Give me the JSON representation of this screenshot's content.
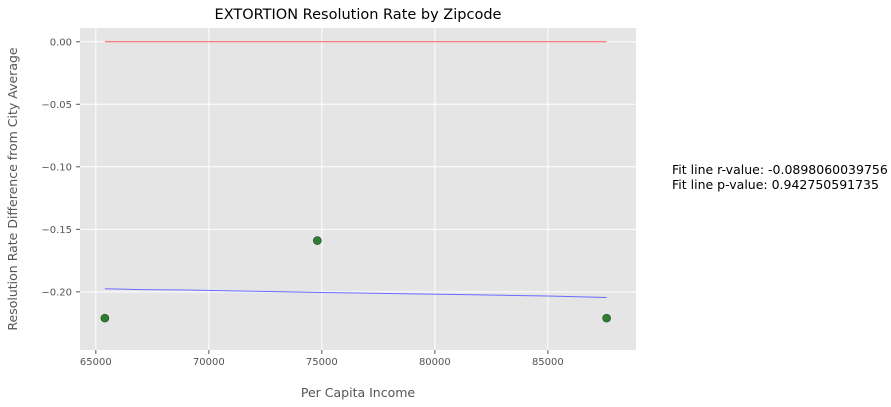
{
  "chart_data": {
    "type": "scatter",
    "title": "EXTORTION Resolution Rate by Zipcode",
    "xlabel": "Per Capita Income",
    "ylabel": "Resolution Rate Difference from City Average",
    "xlim": [
      64300,
      88900
    ],
    "ylim": [
      -0.2465,
      0.011
    ],
    "xticks": [
      65000,
      70000,
      75000,
      80000,
      85000
    ],
    "xtick_labels": [
      "65000",
      "70000",
      "75000",
      "80000",
      "85000"
    ],
    "yticks": [
      0.0,
      -0.05,
      -0.1,
      -0.15,
      -0.2
    ],
    "ytick_labels": [
      "0.00",
      "−0.05",
      "−0.10",
      "−0.15",
      "−0.20"
    ],
    "grid": true,
    "points": {
      "x": [
        65400,
        74800,
        87600
      ],
      "y": [
        -0.221,
        -0.159,
        -0.221
      ],
      "color": "#2e7d32"
    },
    "fit_line": {
      "x": [
        65400,
        67000,
        69000,
        71000,
        73000,
        75000,
        77000,
        79000,
        81000,
        83000,
        85000,
        87600
      ],
      "y": [
        -0.1975,
        -0.1982,
        -0.1985,
        -0.1992,
        -0.1998,
        -0.2005,
        -0.201,
        -0.2016,
        -0.2021,
        -0.2027,
        -0.2033,
        -0.2045
      ],
      "color": "#6b6bff"
    },
    "reference_line": {
      "x": [
        65400,
        87600
      ],
      "y": [
        0.0,
        0.0
      ],
      "color": "#ff5a5a"
    },
    "annotations": [
      "Fit line r-value: -0.0898060039756",
      "Fit line p-value: 0.942750591735"
    ]
  }
}
